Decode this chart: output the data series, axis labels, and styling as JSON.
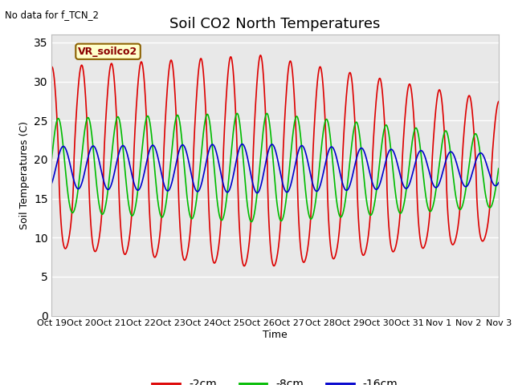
{
  "title": "Soil CO2 North Temperatures",
  "subtitle": "No data for f_TCN_2",
  "xlabel": "Time",
  "ylabel": "Soil Temperatures (C)",
  "ylim": [
    0,
    36
  ],
  "yticks": [
    0,
    5,
    10,
    15,
    20,
    25,
    30,
    35
  ],
  "x_tick_labels": [
    "Oct 19",
    "Oct 20",
    "Oct 21",
    "Oct 22",
    "Oct 23",
    "Oct 24",
    "Oct 25",
    "Oct 26",
    "Oct 27",
    "Oct 28",
    "Oct 29",
    "Oct 30",
    "Oct 31",
    "Nov 1",
    "Nov 2",
    "Nov 3"
  ],
  "vr_label": "VR_soilco2",
  "series_2cm_color": "#dd0000",
  "series_8cm_color": "#00bb00",
  "series_16cm_color": "#0000cc",
  "series_2cm_label": "-2cm",
  "series_8cm_label": "-8cm",
  "series_16cm_label": "-16cm",
  "bg_fig_color": "#ffffff",
  "bg_ax_color": "#e8e8e8",
  "grid_color": "#ffffff",
  "n_days": 15,
  "ppd": 96,
  "title_fontsize": 13,
  "axis_fontsize": 9,
  "tick_fontsize": 8
}
